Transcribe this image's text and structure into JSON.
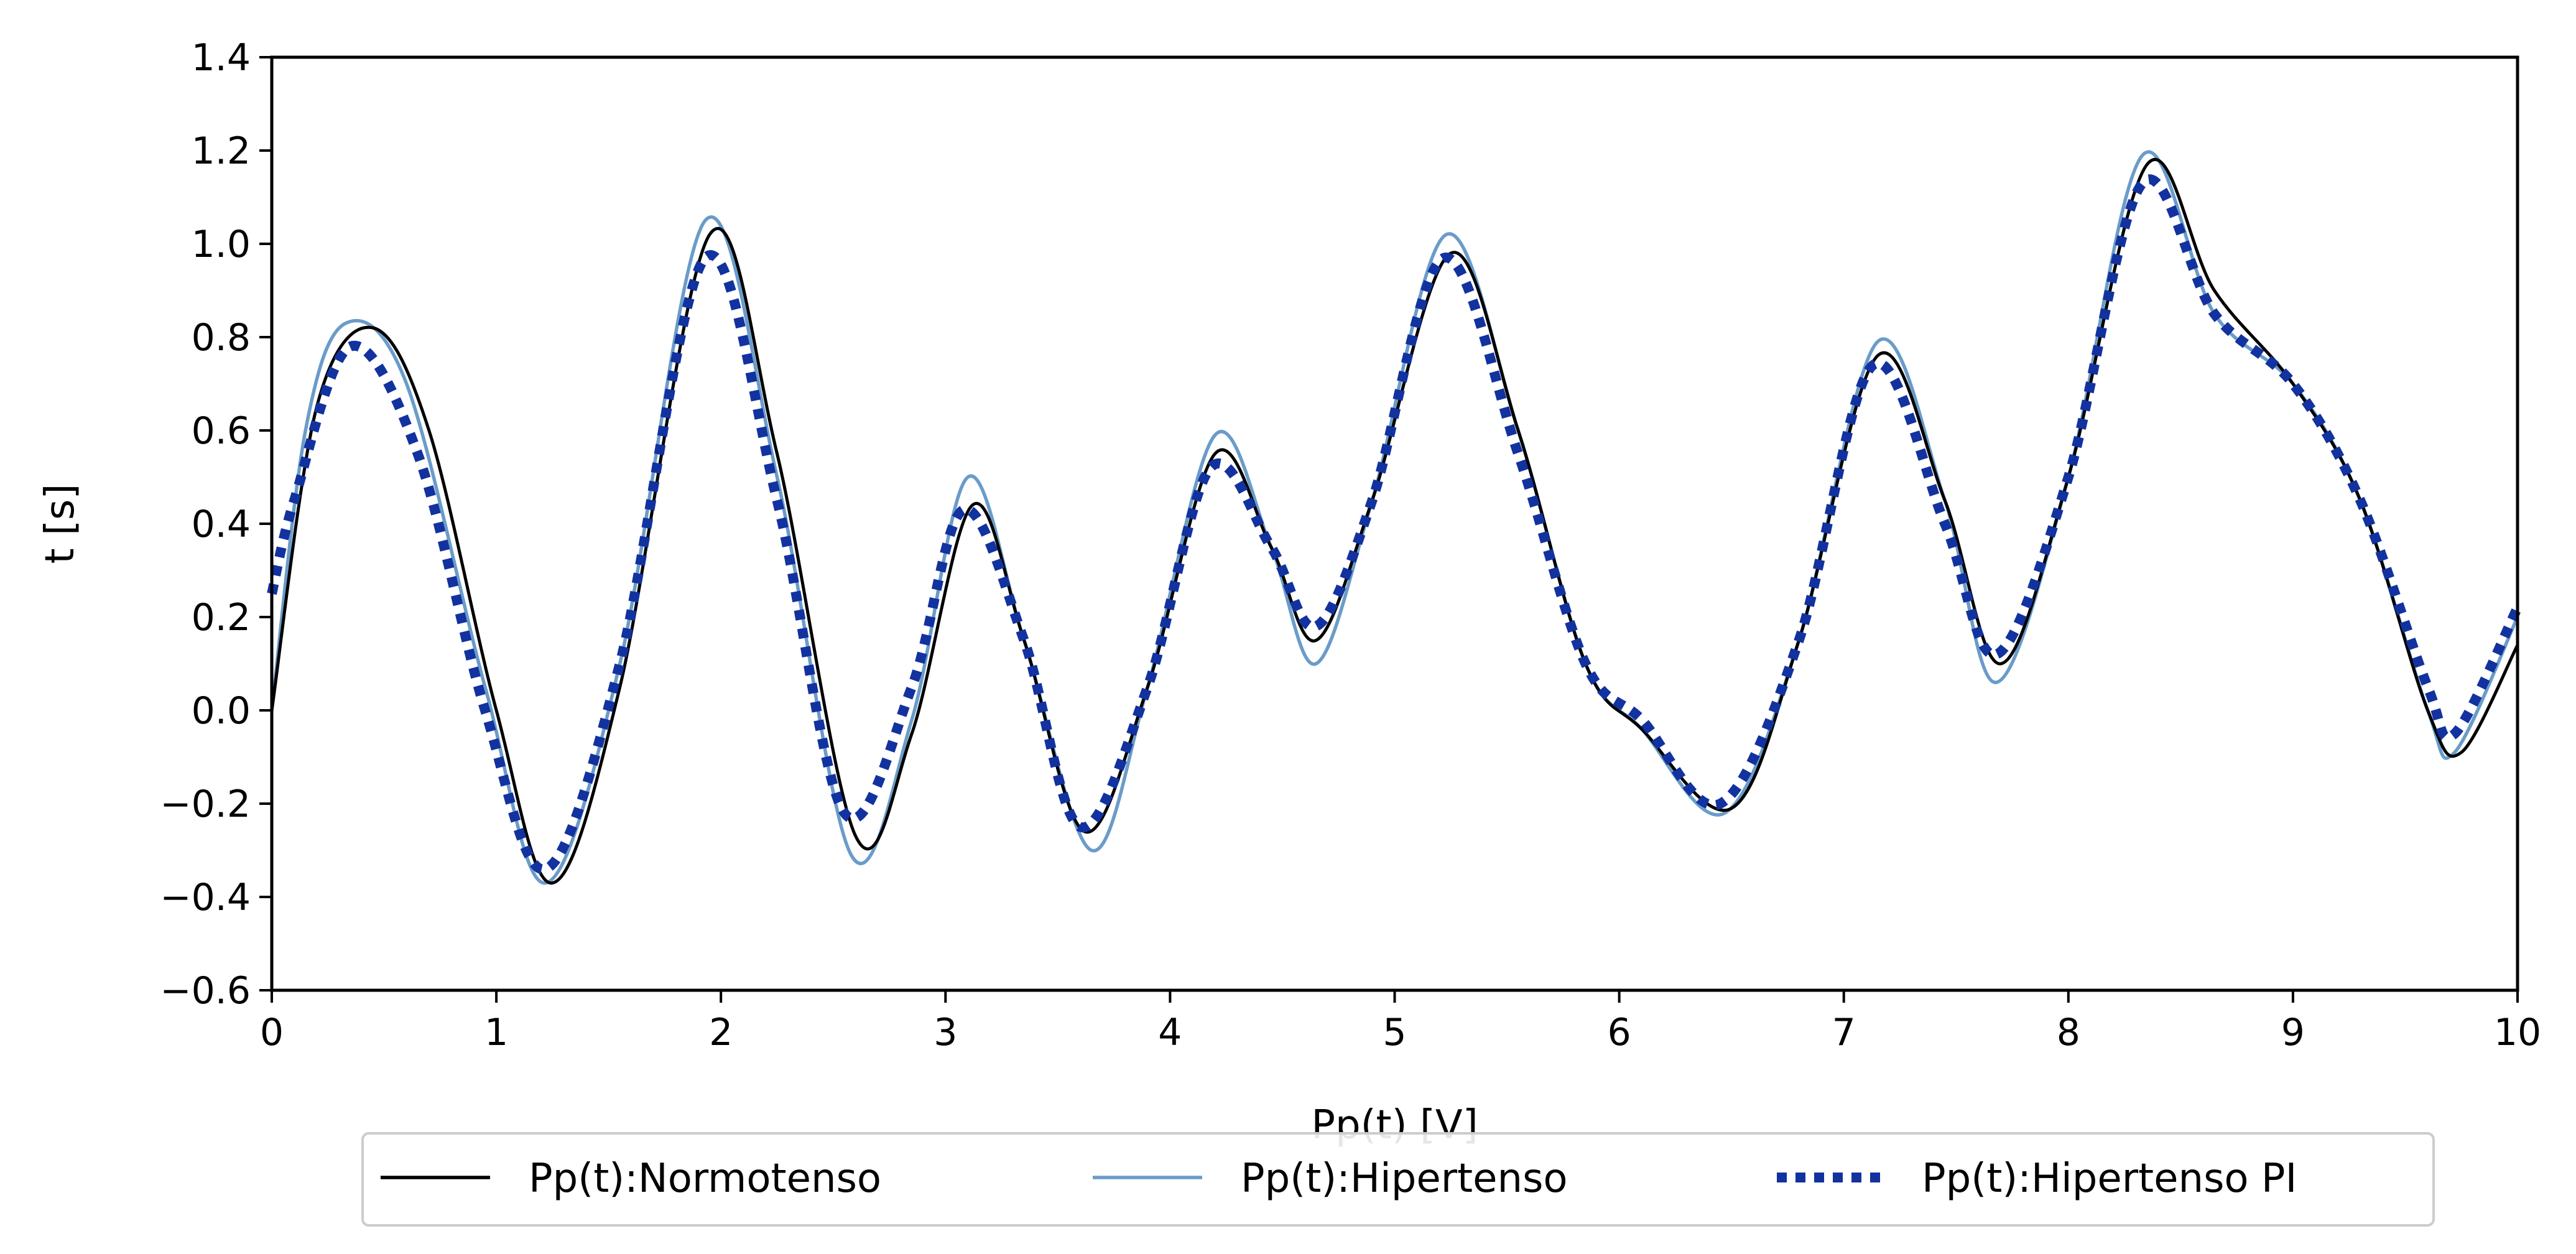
{
  "chart_data": {
    "type": "line",
    "title": "",
    "xlabel": "Pp(t) [V]",
    "ylabel": "t [s]",
    "xlim": [
      0,
      10
    ],
    "ylim": [
      -0.6,
      1.4
    ],
    "xticks": [
      0,
      1,
      2,
      3,
      4,
      5,
      6,
      7,
      8,
      9,
      10
    ],
    "yticks": [
      -0.6,
      -0.4,
      -0.2,
      0.0,
      0.2,
      0.4,
      0.6,
      0.8,
      1.0,
      1.2,
      1.4
    ],
    "xtick_labels": [
      "0",
      "1",
      "2",
      "3",
      "4",
      "5",
      "6",
      "7",
      "8",
      "9",
      "10"
    ],
    "ytick_labels": [
      "−0.6",
      "−0.4",
      "−0.2",
      "0.0",
      "0.2",
      "0.4",
      "0.6",
      "0.8",
      "1.0",
      "1.2",
      "1.4"
    ],
    "grid": false,
    "legend_position": "bottom-center",
    "series": [
      {
        "name": "Pp(t):Normotenso",
        "color": "#000000",
        "style": "solid",
        "x": [
          0,
          0.2,
          0.45,
          0.7,
          1.0,
          1.25,
          1.55,
          1.95,
          2.25,
          2.6,
          2.85,
          3.12,
          3.35,
          3.62,
          3.9,
          4.2,
          4.45,
          4.65,
          4.9,
          5.25,
          5.55,
          5.85,
          6.1,
          6.5,
          6.8,
          7.15,
          7.45,
          7.7,
          8.0,
          8.35,
          8.65,
          9.0,
          9.3,
          9.6,
          9.75,
          10.0
        ],
        "y": [
          0.0,
          0.65,
          0.82,
          0.6,
          0.0,
          -0.37,
          0.05,
          1.02,
          0.55,
          -0.27,
          -0.05,
          0.44,
          0.15,
          -0.26,
          0.05,
          0.55,
          0.35,
          0.15,
          0.45,
          0.98,
          0.6,
          0.1,
          -0.04,
          -0.21,
          0.15,
          0.76,
          0.45,
          0.1,
          0.5,
          1.17,
          0.9,
          0.7,
          0.45,
          0.0,
          -0.09,
          0.14
        ]
      },
      {
        "name": "Pp(t):Hipertenso",
        "color": "#6a9cc9",
        "style": "solid",
        "x": [
          0,
          0.15,
          0.33,
          0.6,
          0.95,
          1.22,
          1.55,
          1.93,
          2.25,
          2.58,
          2.85,
          3.1,
          3.35,
          3.65,
          3.9,
          4.2,
          4.45,
          4.65,
          4.9,
          5.23,
          5.55,
          5.85,
          6.1,
          6.47,
          6.8,
          7.15,
          7.45,
          7.68,
          8.0,
          8.33,
          8.65,
          9.0,
          9.3,
          9.6,
          9.72,
          10.0
        ],
        "y": [
          0.0,
          0.6,
          0.83,
          0.7,
          0.05,
          -0.37,
          0.1,
          1.05,
          0.5,
          -0.31,
          -0.02,
          0.5,
          0.15,
          -0.3,
          0.05,
          0.59,
          0.35,
          0.1,
          0.45,
          1.02,
          0.6,
          0.1,
          -0.04,
          -0.22,
          0.15,
          0.79,
          0.45,
          0.06,
          0.5,
          1.19,
          0.85,
          0.7,
          0.45,
          0.0,
          -0.09,
          0.2
        ]
      },
      {
        "name": "Pp(t):Hipertenso PI",
        "color": "#1232a0",
        "style": "dotted",
        "x": [
          0,
          0.1,
          0.35,
          0.65,
          0.95,
          1.22,
          1.55,
          1.93,
          2.25,
          2.55,
          2.85,
          3.08,
          3.35,
          3.6,
          3.9,
          4.18,
          4.45,
          4.65,
          4.9,
          5.22,
          5.55,
          5.85,
          6.1,
          6.45,
          6.8,
          7.13,
          7.45,
          7.68,
          8.0,
          8.33,
          8.65,
          9.0,
          9.3,
          9.6,
          9.72,
          10.0
        ],
        "y": [
          0.25,
          0.45,
          0.78,
          0.55,
          0.0,
          -0.34,
          0.1,
          0.97,
          0.45,
          -0.22,
          0.05,
          0.43,
          0.15,
          -0.25,
          0.05,
          0.52,
          0.35,
          0.18,
          0.45,
          0.97,
          0.55,
          0.1,
          -0.02,
          -0.2,
          0.15,
          0.74,
          0.4,
          0.12,
          0.5,
          1.13,
          0.85,
          0.7,
          0.45,
          0.05,
          -0.05,
          0.22
        ]
      }
    ]
  }
}
